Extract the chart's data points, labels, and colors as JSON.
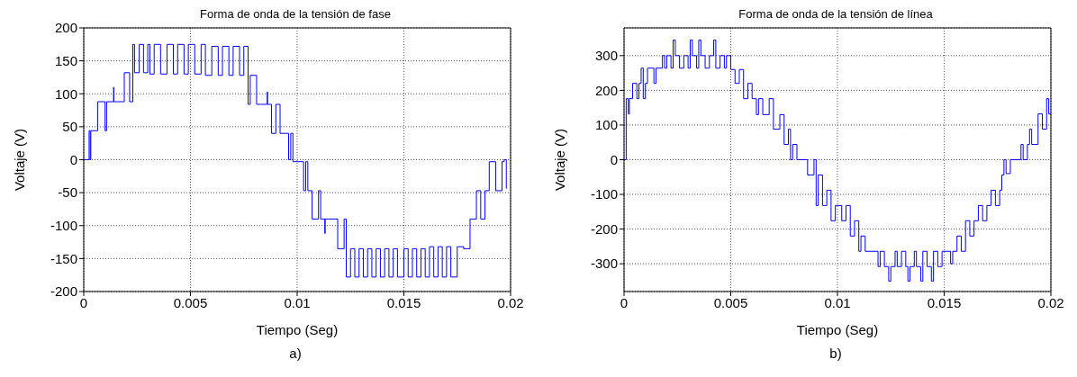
{
  "chart_data": [
    {
      "type": "step",
      "title": "Forma de onda de la tensión de fase",
      "xlabel": "Tiempo (Seg)",
      "ylabel": "Voltaje (V)",
      "annotations": [
        "a)"
      ],
      "xlim": [
        0,
        0.02
      ],
      "xticks": [
        0,
        0.005,
        0.01,
        0.015,
        0.02
      ],
      "ylim": [
        -200,
        200
      ],
      "yticks": [
        -200,
        -150,
        -100,
        -50,
        0,
        50,
        100,
        150,
        200
      ],
      "grid": true,
      "series": [
        {
          "color": "#0000ff",
          "x": [
            0,
            0.00025,
            0.0003,
            0.00033,
            0.00065,
            0.001,
            0.00107,
            0.0014,
            0.00141,
            0.0019,
            0.00215,
            0.0023,
            0.00238,
            0.0026,
            0.0028,
            0.003,
            0.0031,
            0.0033,
            0.0036,
            0.0039,
            0.0042,
            0.0044,
            0.0047,
            0.0049,
            0.0052,
            0.0055,
            0.0057,
            0.006,
            0.0063,
            0.0065,
            0.0068,
            0.007,
            0.0073,
            0.0075,
            0.0077,
            0.0078,
            0.0081,
            0.0086,
            0.00861,
            0.0088,
            0.009,
            0.0092,
            0.0096,
            0.0097,
            0.0098,
            0.0103,
            0.0104,
            0.0105,
            0.0107,
            0.011,
            0.0111,
            0.0113,
            0.01131,
            0.0119,
            0.0122,
            0.0123,
            0.0125,
            0.0127,
            0.0129,
            0.0131,
            0.0133,
            0.0135,
            0.0137,
            0.0139,
            0.0141,
            0.0143,
            0.0145,
            0.0147,
            0.015,
            0.0152,
            0.0154,
            0.0156,
            0.0158,
            0.016,
            0.0162,
            0.0164,
            0.0166,
            0.0168,
            0.017,
            0.0172,
            0.0175,
            0.0178,
            0.0181,
            0.0184,
            0.0186,
            0.0188,
            0.019,
            0.0193,
            0.0196,
            0.0197,
            0.0198
          ],
          "values": [
            0,
            44,
            0,
            44,
            88,
            44,
            88,
            110,
            88,
            132,
            88,
            175,
            132,
            175,
            132,
            175,
            130,
            175,
            130,
            175,
            130,
            175,
            130,
            175,
            130,
            175,
            128,
            172,
            128,
            172,
            128,
            172,
            128,
            172,
            84,
            128,
            84,
            103,
            84,
            40,
            84,
            40,
            0,
            40,
            -3,
            -47,
            -3,
            -47,
            -90,
            -47,
            -90,
            -112,
            -90,
            -135,
            -90,
            -178,
            -135,
            -178,
            -135,
            -178,
            -135,
            -178,
            -135,
            -178,
            -135,
            -178,
            -135,
            -178,
            -135,
            -178,
            -135,
            -178,
            -135,
            -178,
            -132,
            -178,
            -132,
            -178,
            -132,
            -178,
            -132,
            -135,
            -90,
            -47,
            -90,
            -47,
            -3,
            -47,
            -3,
            0,
            -44
          ]
        }
      ]
    },
    {
      "type": "step",
      "title": "Forma de onda de la tensión de línea",
      "xlabel": "Tiempo (Seg)",
      "ylabel": "Voltaje (V)",
      "annotations": [
        "b)"
      ],
      "xlim": [
        0,
        0.02
      ],
      "xticks": [
        0,
        0.005,
        0.01,
        0.015,
        0.02
      ],
      "ylim": [
        -380,
        380
      ],
      "yticks": [
        -300,
        -200,
        -100,
        0,
        100,
        200,
        300
      ],
      "grid": true,
      "series": [
        {
          "color": "#0000ff",
          "x": [
            0,
            0.0001,
            0.0002,
            0.00025,
            0.0004,
            0.0006,
            0.0007,
            0.0008,
            0.0009,
            0.001,
            0.0011,
            0.0014,
            0.0015,
            0.0018,
            0.0019,
            0.002,
            0.0022,
            0.0023,
            0.0024,
            0.0026,
            0.0028,
            0.003,
            0.0031,
            0.0032,
            0.0034,
            0.0035,
            0.0036,
            0.0038,
            0.004,
            0.0042,
            0.0043,
            0.0045,
            0.0047,
            0.0048,
            0.005,
            0.0052,
            0.0054,
            0.0056,
            0.0058,
            0.006,
            0.0062,
            0.0063,
            0.0065,
            0.0068,
            0.007,
            0.0073,
            0.0075,
            0.0077,
            0.0078,
            0.0079,
            0.0081,
            0.0086,
            0.0089,
            0.009,
            0.0091,
            0.0093,
            0.0095,
            0.0097,
            0.0099,
            0.0102,
            0.0104,
            0.0106,
            0.0108,
            0.011,
            0.0111,
            0.0113,
            0.0119,
            0.012,
            0.0122,
            0.0124,
            0.0125,
            0.0127,
            0.0128,
            0.013,
            0.0132,
            0.0133,
            0.0134,
            0.0136,
            0.0137,
            0.0139,
            0.014,
            0.0142,
            0.0144,
            0.0145,
            0.0147,
            0.0149,
            0.0153,
            0.0154,
            0.0156,
            0.0158,
            0.016,
            0.0162,
            0.0164,
            0.0166,
            0.0168,
            0.017,
            0.0172,
            0.0174,
            0.0176,
            0.0177,
            0.0178,
            0.0179,
            0.0181,
            0.0186,
            0.0187,
            0.0189,
            0.019,
            0.0191,
            0.0194,
            0.0196,
            0.0198,
            0.0199,
            0.02
          ],
          "values": [
            0,
            176,
            132,
            176,
            220,
            176,
            220,
            264,
            176,
            220,
            264,
            220,
            264,
            300,
            264,
            300,
            264,
            345,
            300,
            264,
            300,
            264,
            345,
            300,
            264,
            345,
            300,
            264,
            300,
            345,
            264,
            300,
            264,
            300,
            260,
            220,
            260,
            176,
            220,
            176,
            130,
            176,
            130,
            176,
            88,
            130,
            44,
            88,
            0,
            44,
            0,
            -44,
            0,
            -132,
            -44,
            -132,
            -88,
            -176,
            -132,
            -176,
            -132,
            -220,
            -176,
            -264,
            -220,
            -264,
            -308,
            -264,
            -308,
            -350,
            -308,
            -264,
            -308,
            -264,
            -308,
            -350,
            -308,
            -264,
            -308,
            -350,
            -264,
            -308,
            -350,
            -264,
            -308,
            -264,
            -300,
            -264,
            -220,
            -264,
            -176,
            -220,
            -176,
            -132,
            -176,
            -132,
            -88,
            -132,
            -88,
            -44,
            0,
            -40,
            0,
            44,
            0,
            44,
            88,
            44,
            132,
            88,
            176,
            132,
            132
          ]
        }
      ]
    }
  ]
}
